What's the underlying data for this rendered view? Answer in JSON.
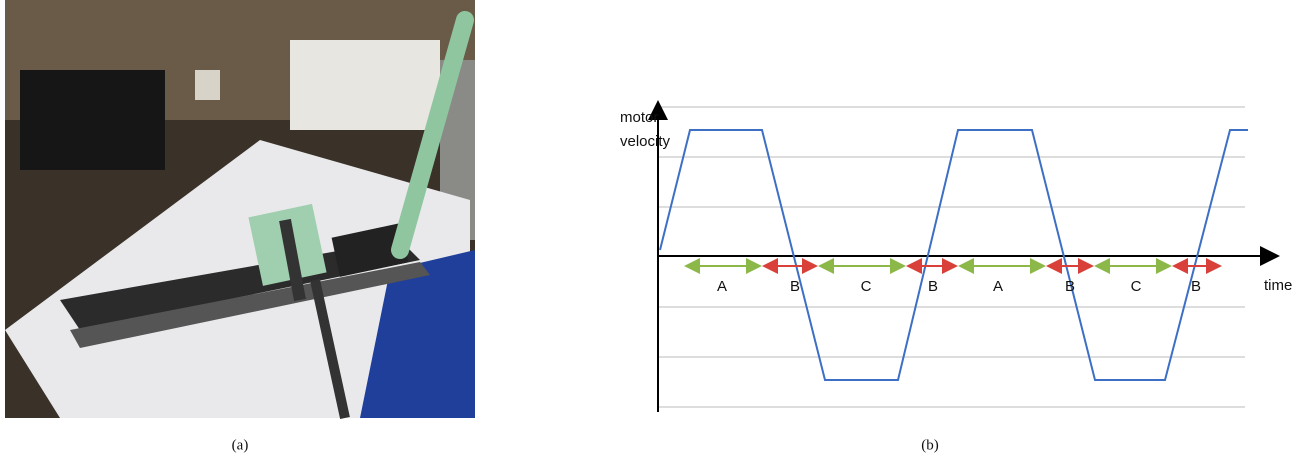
{
  "panel_a": {
    "caption": "(a)"
  },
  "panel_b": {
    "caption": "(b)",
    "y_axis_label": [
      "motor",
      "velocity"
    ],
    "x_axis_label": "time",
    "segments": [
      "A",
      "B",
      "C",
      "B",
      "A",
      "B",
      "C",
      "B"
    ]
  }
}
